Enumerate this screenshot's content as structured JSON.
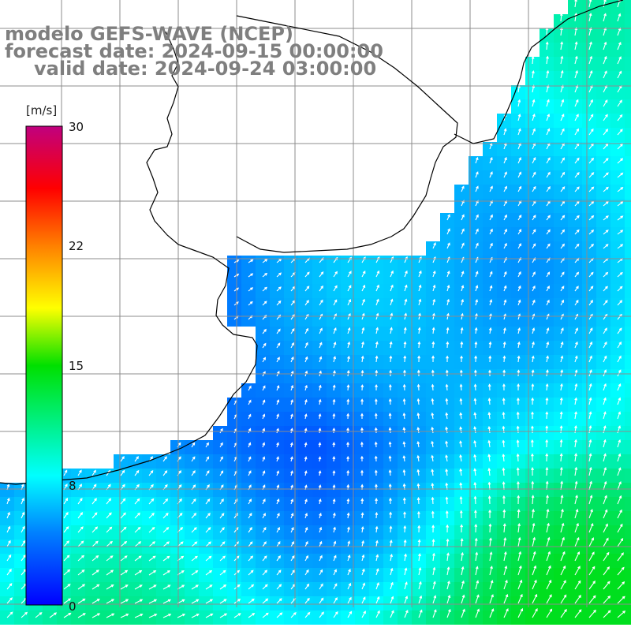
{
  "header": {
    "title": "modelo GEFS-WAVE (NCEP)",
    "forecast": "forecast date: 2024-09-15 00:00:00",
    "valid": "valid date: 2024-09-24 03:00:00"
  },
  "colorbar": {
    "unit": "[m/s]",
    "tick_labels": [
      "30",
      "22",
      "15",
      "8",
      "0"
    ],
    "min": 0,
    "max": 30,
    "stops": [
      "#0000ff",
      "#00c8ff",
      "#00ffff",
      "#00ff00",
      "#ffff00",
      "#ff8000",
      "#ff0000",
      "#c0007f"
    ]
  },
  "map": {
    "field": "wind speed and direction",
    "sea_color_low": "#0050ff",
    "land_color": "#ffffff",
    "coastline_color": "#000000",
    "grid_color": "#8c8c8c"
  }
}
